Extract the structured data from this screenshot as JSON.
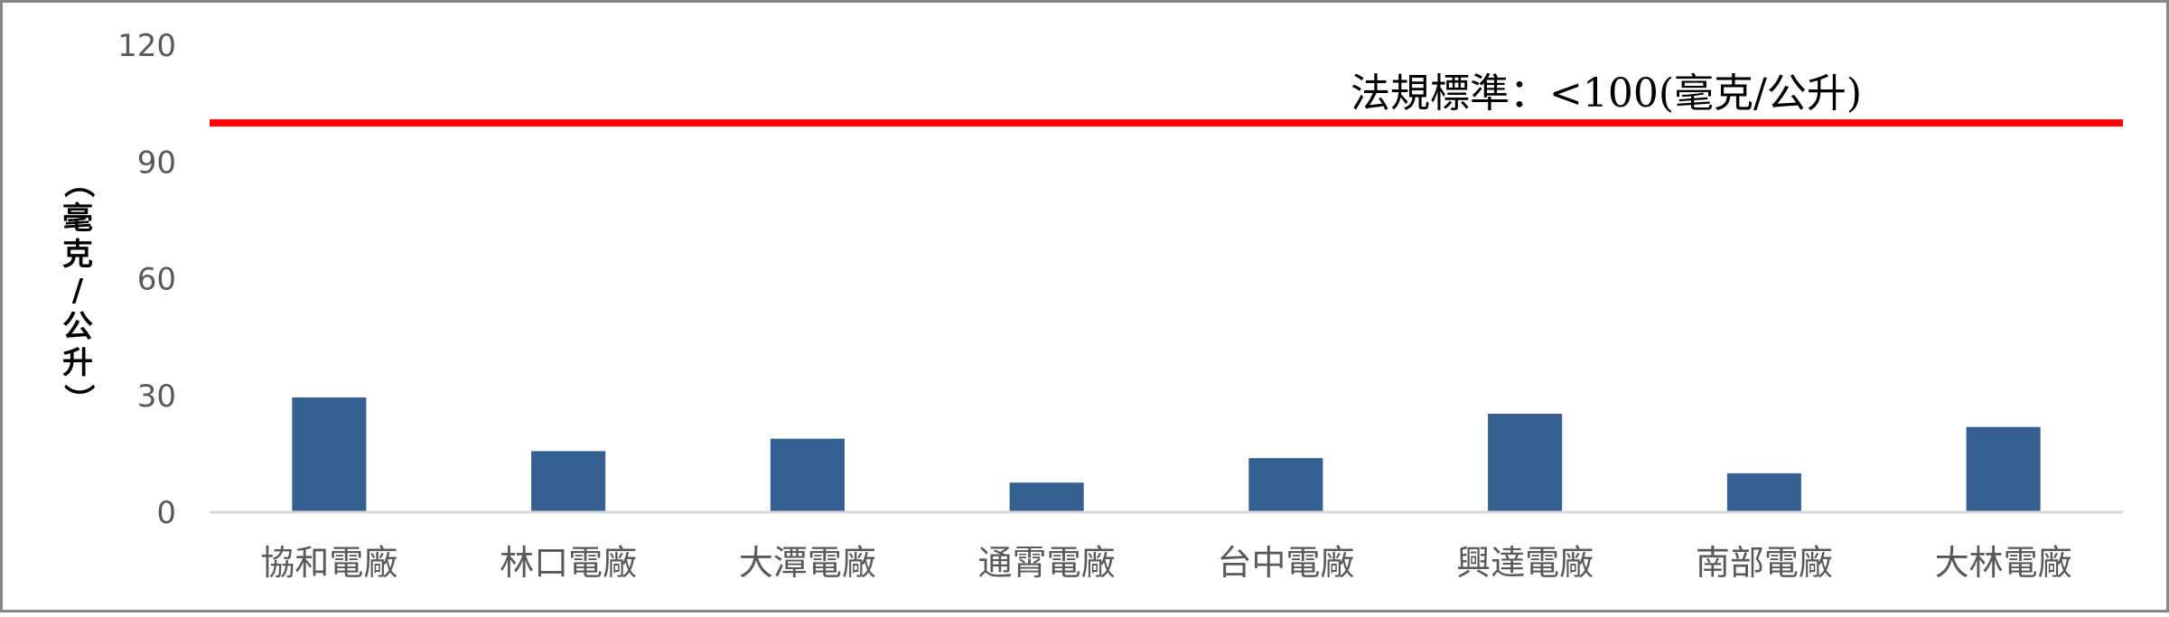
{
  "chart_data": {
    "type": "bar",
    "categories": [
      "協和電廠",
      "林口電廠",
      "大潭電廠",
      "通霄電廠",
      "台中電廠",
      "興達電廠",
      "南部電廠",
      "大林電廠"
    ],
    "values": [
      29.5,
      15.7,
      18.9,
      7.6,
      13.9,
      25.3,
      10.0,
      21.9
    ],
    "ylabel": "（毫克/公升）",
    "ylim": [
      0,
      120
    ],
    "yticks": [
      0,
      30,
      60,
      90,
      120
    ],
    "grid": false,
    "reference_line": {
      "value": 100,
      "label": "法規標準：<100(毫克/公升)",
      "color": "#ff0000"
    },
    "bar_color": "#376092"
  }
}
